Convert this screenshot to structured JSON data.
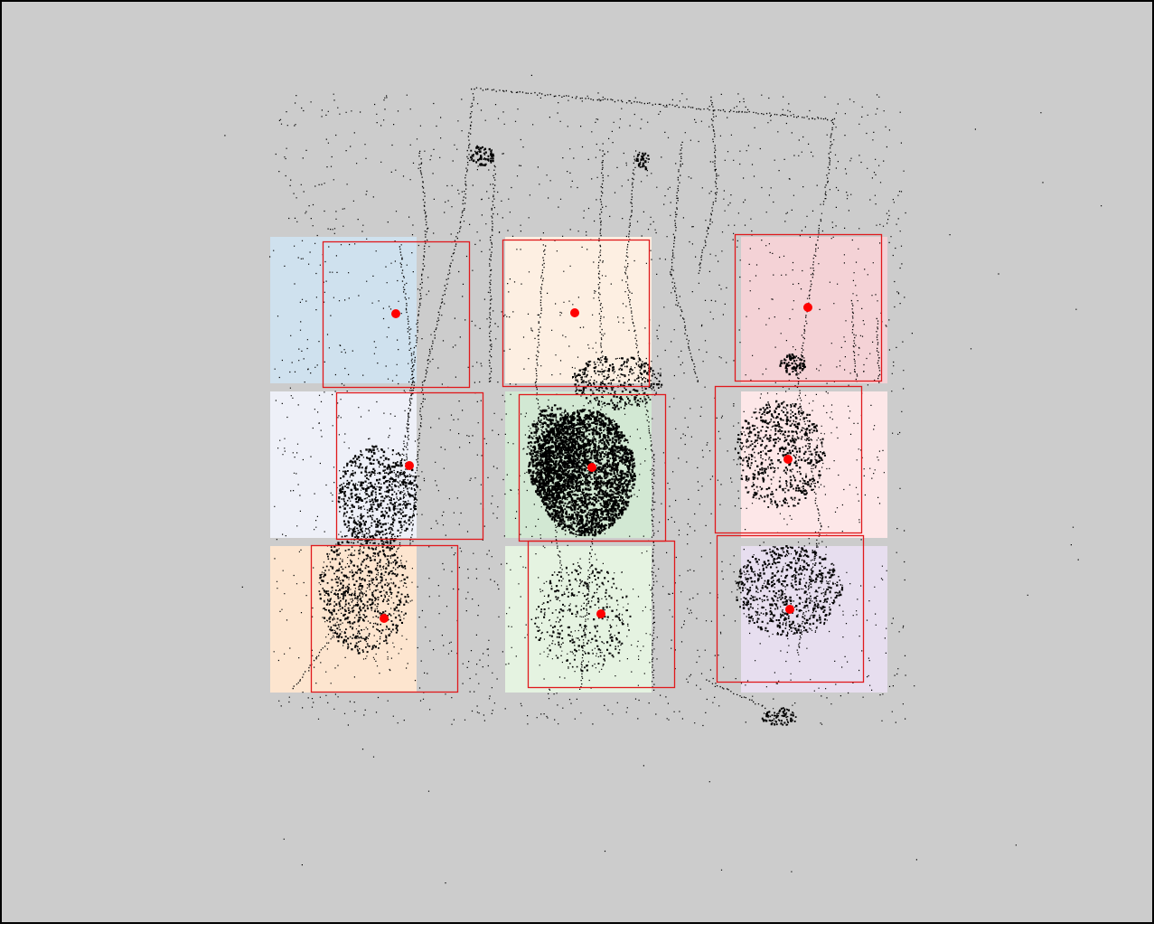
{
  "viewport": {
    "background_color": "#cccccc",
    "border_color": "#000000"
  },
  "tiles": [
    {
      "id": "r1c1",
      "color": "#cfe1ee"
    },
    {
      "id": "r1c2",
      "color": "#fdefe2"
    },
    {
      "id": "r1c3",
      "color": "#f4d2d6"
    },
    {
      "id": "r2c1",
      "color": "#eef0f8"
    },
    {
      "id": "r2c2",
      "color": "#d2e8d3"
    },
    {
      "id": "r2c3",
      "color": "#fde7e8"
    },
    {
      "id": "r3c1",
      "color": "#fde5cf"
    },
    {
      "id": "r3c2",
      "color": "#e5f3e1"
    },
    {
      "id": "r3c3",
      "color": "#e7deef"
    }
  ],
  "selection_box_color": "#e0191c",
  "center_marker_color": "#ff0000",
  "point_cloud_color": "#000000"
}
